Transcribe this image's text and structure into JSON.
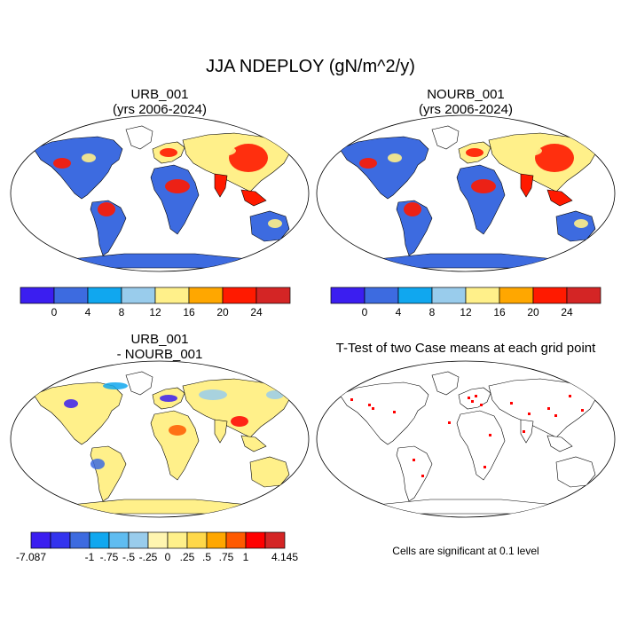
{
  "title": "JJA NDEPLOY (gN/m^2/y)",
  "panels": {
    "urb": {
      "line1": "URB_001",
      "line2": "(yrs 2006-2024)"
    },
    "nourb": {
      "line1": "NOURB_001",
      "line2": "(yrs 2006-2024)"
    },
    "diff": {
      "line1": "URB_001",
      "line2": "- NOURB_001"
    },
    "ttest": {
      "line1": "T-Test of two Case means at each grid point"
    }
  },
  "colorbar_abs": {
    "colors": [
      "#3b1ef0",
      "#3d6be0",
      "#10a7ef",
      "#99ccec",
      "#fff08a",
      "#ffa700",
      "#ff1a00",
      "#d42525"
    ],
    "labels": [
      "0",
      "4",
      "8",
      "12",
      "16",
      "20",
      "24"
    ]
  },
  "colorbar_diff": {
    "colors": [
      "#3b1ef0",
      "#3333ee",
      "#3d6be0",
      "#10a7ef",
      "#5fbcf0",
      "#99ccec",
      "#fff5b0",
      "#fff08a",
      "#ffd84a",
      "#ffa700",
      "#ff5a00",
      "#ff0000",
      "#d42525"
    ],
    "labels": [
      "-7.087",
      "-1",
      "-.75",
      "-.5",
      "-.25",
      "0",
      ".25",
      ".5",
      ".75",
      "1",
      "4.145"
    ]
  },
  "significance_note": "Cells are significant at 0.1 level",
  "map_colors": {
    "ocean": "#ffffff",
    "land_low": "#3d6be0",
    "land_mid": "#fff08a",
    "land_high": "#ff1a00",
    "diff_neutral": "#fff08a",
    "signif": "#ff0000"
  }
}
